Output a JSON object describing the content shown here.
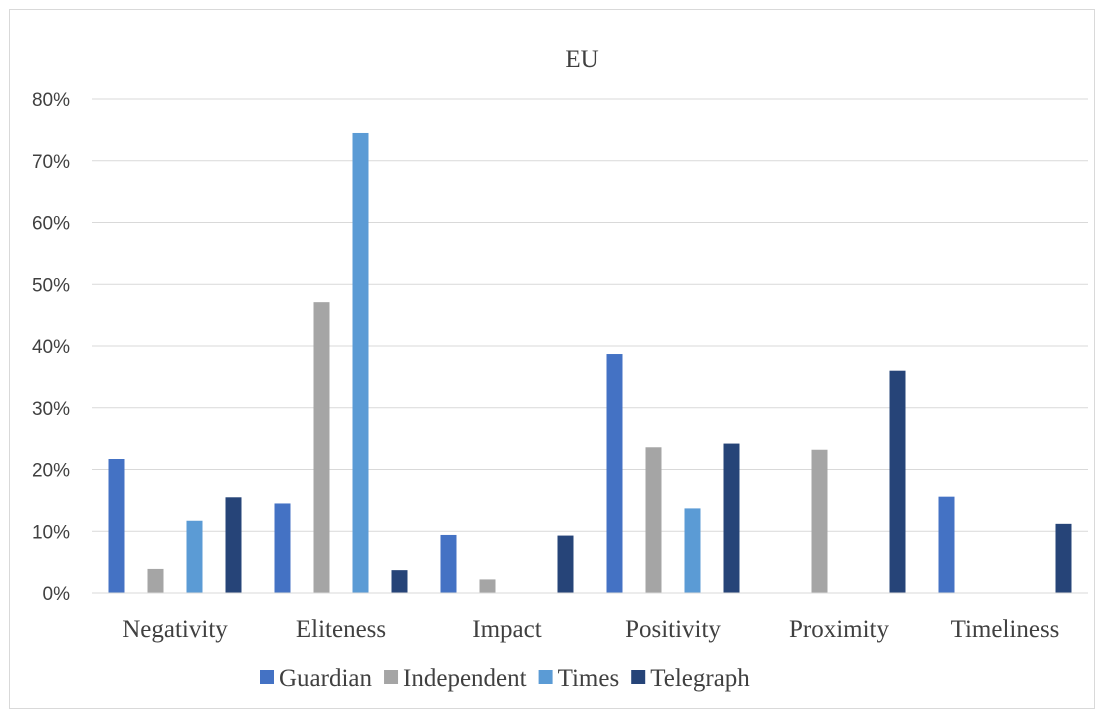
{
  "chart_data": {
    "type": "bar",
    "title": "EU",
    "xlabel": "",
    "ylabel": "",
    "ylim": [
      0,
      0.8
    ],
    "yticks": [
      {
        "value": 0.0,
        "label": "0%"
      },
      {
        "value": 0.1,
        "label": "10%"
      },
      {
        "value": 0.2,
        "label": "20%"
      },
      {
        "value": 0.3,
        "label": "30%"
      },
      {
        "value": 0.4,
        "label": "40%"
      },
      {
        "value": 0.5,
        "label": "50%"
      },
      {
        "value": 0.6,
        "label": "60%"
      },
      {
        "value": 0.7,
        "label": "70%"
      },
      {
        "value": 0.8,
        "label": "80%"
      }
    ],
    "grid": true,
    "legend_position": "bottom",
    "categories": [
      "Negativity",
      "Eliteness",
      "Impact",
      "Positivity",
      "Proximity",
      "Timeliness"
    ],
    "series": [
      {
        "name": "Guardian",
        "color": "#4472c4",
        "values": [
          0.217,
          0.145,
          0.094,
          0.387,
          0.0,
          0.156
        ]
      },
      {
        "name": "Independent",
        "color": "#a5a5a5",
        "values": [
          0.039,
          0.471,
          0.022,
          0.236,
          0.232,
          0.0
        ]
      },
      {
        "name": "Times",
        "color": "#5b9bd5",
        "values": [
          0.117,
          0.745,
          0.0,
          0.137,
          0.0,
          0.0
        ]
      },
      {
        "name": "Telegraph",
        "color": "#264478",
        "values": [
          0.155,
          0.037,
          0.093,
          0.242,
          0.36,
          0.112
        ]
      }
    ]
  }
}
